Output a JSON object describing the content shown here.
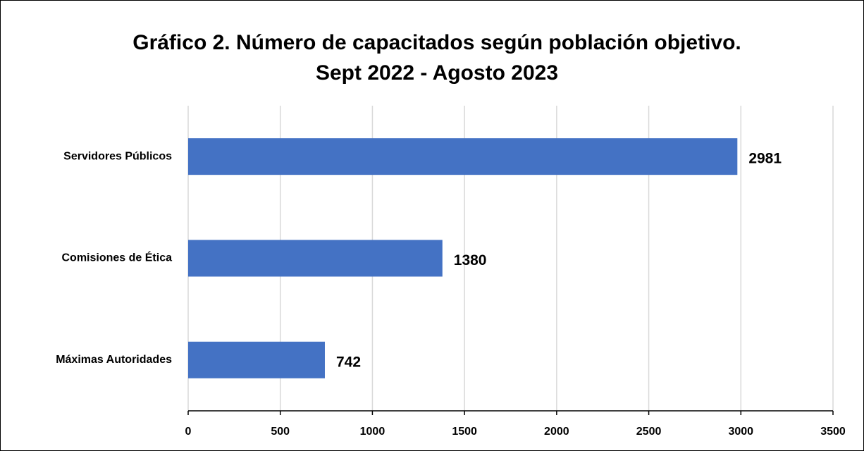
{
  "chart_data": {
    "type": "barh",
    "title": [
      "Gráfico 2. Número de capacitados según población objetivo.",
      "Sept 2022 - Agosto 2023"
    ],
    "categories": [
      "Servidores Públicos",
      "Comisiones de Ética",
      "Máximas Autoridades"
    ],
    "values": [
      2981,
      1380,
      742
    ],
    "color": "#4472c4",
    "xlim": [
      0,
      3500
    ],
    "xticks": [
      0,
      500,
      1000,
      1500,
      2000,
      2500,
      3000,
      3500
    ],
    "grid": true
  }
}
